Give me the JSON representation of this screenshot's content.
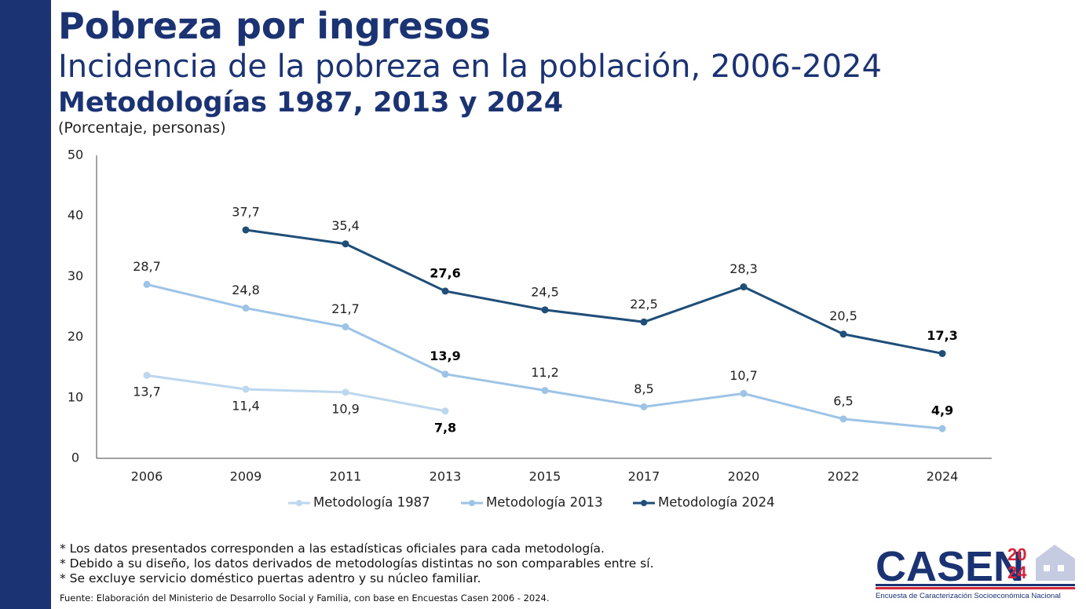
{
  "header": {
    "title": "Pobreza por ingresos",
    "subtitle": "Incidencia de la pobreza en la población, 2006-2024",
    "subtitle2": "Metodologías 1987, 2013 y 2024",
    "units": "(Porcentaje, personas)"
  },
  "chart_data": {
    "type": "line",
    "categories": [
      "2006",
      "2009",
      "2011",
      "2013",
      "2015",
      "2017",
      "2020",
      "2022",
      "2024"
    ],
    "ylim": [
      0,
      50
    ],
    "yticks": [
      0,
      10,
      20,
      30,
      40,
      50
    ],
    "grid": false,
    "legend_position": "bottom",
    "series": [
      {
        "name": "Metodología 1987",
        "color": "#bdd7ee",
        "values": [
          13.7,
          11.4,
          10.9,
          7.8,
          null,
          null,
          null,
          null,
          null
        ],
        "labels": [
          "13,7",
          "11,4",
          "10,9",
          "7,8",
          "",
          "",
          "",
          "",
          ""
        ],
        "bold": [
          false,
          false,
          false,
          true,
          false,
          false,
          false,
          false,
          false
        ]
      },
      {
        "name": "Metodología 2013",
        "color": "#9dc3e6",
        "values": [
          28.7,
          24.8,
          21.7,
          13.9,
          11.2,
          8.5,
          10.7,
          6.5,
          4.9
        ],
        "labels": [
          "28,7",
          "24,8",
          "21,7",
          "13,9",
          "11,2",
          "8,5",
          "10,7",
          "6,5",
          "4,9"
        ],
        "bold": [
          false,
          false,
          false,
          true,
          false,
          false,
          false,
          false,
          true
        ]
      },
      {
        "name": "Metodología 2024",
        "color": "#1f4e79",
        "values": [
          null,
          37.7,
          35.4,
          27.6,
          24.5,
          22.5,
          28.3,
          20.5,
          17.3
        ],
        "labels": [
          "",
          "37,7",
          "35,4",
          "27,6",
          "24,5",
          "22,5",
          "28,3",
          "20,5",
          "17,3"
        ],
        "bold": [
          false,
          false,
          false,
          true,
          false,
          false,
          false,
          false,
          true
        ]
      }
    ]
  },
  "notes": [
    "* Los datos presentados corresponden a las estadísticas oficiales para cada metodología.",
    "* Debido a su diseño, los datos derivados de metodologías distintas no son comparables entre sí.",
    "* Se excluye servicio doméstico puertas adentro y su núcleo familiar."
  ],
  "source": "Fuente: Elaboración del Ministerio de Desarrollo Social y Familia, con base en Encuestas Casen 2006 - 2024.",
  "logo": {
    "word": "CASEN",
    "year_top": "20",
    "year_bottom": "24",
    "tagline": "Encuesta de Caracterización Socioeconómica Nacional",
    "color_blue": "#1c3373",
    "color_red": "#d6263a"
  }
}
